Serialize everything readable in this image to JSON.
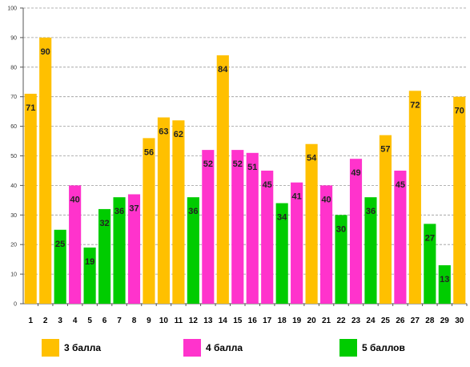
{
  "chart_data": {
    "type": "bar",
    "categories": [
      "1",
      "2",
      "3",
      "4",
      "5",
      "6",
      "7",
      "8",
      "9",
      "10",
      "11",
      "12",
      "13",
      "14",
      "15",
      "16",
      "17",
      "18",
      "19",
      "20",
      "21",
      "22",
      "23",
      "24",
      "25",
      "26",
      "27",
      "28",
      "29",
      "30"
    ],
    "values": [
      71,
      90,
      25,
      40,
      19,
      32,
      36,
      37,
      56,
      63,
      62,
      36,
      52,
      84,
      52,
      51,
      45,
      34,
      41,
      54,
      40,
      30,
      49,
      36,
      57,
      45,
      72,
      27,
      13,
      70
    ],
    "groups": [
      3,
      3,
      5,
      4,
      5,
      5,
      5,
      4,
      3,
      3,
      3,
      5,
      4,
      3,
      4,
      4,
      4,
      5,
      4,
      3,
      4,
      5,
      4,
      5,
      3,
      4,
      3,
      5,
      5,
      3
    ],
    "ylim": [
      0,
      100
    ],
    "yticks": [
      "0",
      "10",
      "20",
      "30",
      "40",
      "50",
      "60",
      "70",
      "80",
      "90",
      "100"
    ],
    "grid": true,
    "legend_position": "bottom",
    "legend": [
      {
        "group": 3,
        "label": "3 балла",
        "color": "#FFC000"
      },
      {
        "group": 4,
        "label": "4 балла",
        "color": "#FF33CC"
      },
      {
        "group": 5,
        "label": "5 баллов",
        "color": "#00CC00"
      }
    ]
  }
}
